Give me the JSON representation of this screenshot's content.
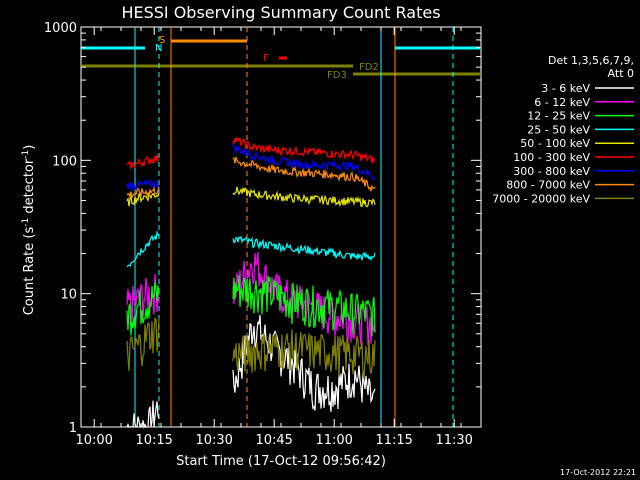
{
  "chart_data": {
    "type": "line",
    "title": "HESSI Observing Summary Count Rates",
    "xlabel": "Start Time (17-Oct-12 09:56:42)",
    "ylabel_main": "Count Rate (s",
    "ylabel_sup1": "-1",
    "ylabel_mid": " detector",
    "ylabel_sup2": "-1",
    "ylabel_end": ")",
    "timestamp": "17-Oct-2012 22:21",
    "y_scale": "log",
    "ylim": [
      1,
      1000
    ],
    "x_tick_labels": [
      "10:00",
      "10:15",
      "10:30",
      "10:45",
      "11:00",
      "11:15",
      "11:30"
    ],
    "x_tick_minutes": [
      3.3,
      18.3,
      33.3,
      48.3,
      63.3,
      78.3,
      93.3
    ],
    "xlim_minutes": [
      0,
      100
    ],
    "y_tick_labels": [
      "1",
      "10",
      "100",
      "1000"
    ],
    "y_tick_values": [
      1,
      10,
      100,
      1000
    ],
    "legend": {
      "header1": "Det 1,3,5,6,7,9,",
      "header2": "Att 0",
      "position": "right"
    },
    "series": [
      {
        "name": "3 - 6 keV",
        "color": "#ffffff",
        "seg1": [
          1,
          1,
          1,
          1.5
        ],
        "seg2": [
          2,
          6,
          4,
          3,
          2,
          2,
          2.5,
          1.5
        ]
      },
      {
        "name": "6 - 12 keV",
        "color": "#ff00ff",
        "seg1": [
          8,
          9,
          10,
          11
        ],
        "seg2": [
          10,
          18,
          11,
          9,
          8,
          7,
          6.5,
          6
        ]
      },
      {
        "name": "12 - 25 keV",
        "color": "#00ff00",
        "seg1": [
          7,
          8,
          9,
          10
        ],
        "seg2": [
          11,
          11,
          10,
          9,
          8.5,
          8,
          7.5,
          7
        ]
      },
      {
        "name": "25 - 50 keV",
        "color": "#00ffff",
        "seg1": [
          16,
          20,
          24,
          28
        ],
        "seg2": [
          26,
          24,
          23,
          22,
          21,
          20,
          19,
          19
        ]
      },
      {
        "name": "50 - 100 keV",
        "color": "#e6e600",
        "seg1": [
          48,
          52,
          54,
          56
        ],
        "seg2": [
          60,
          56,
          54,
          52,
          51,
          50,
          49,
          48
        ]
      },
      {
        "name": "100 - 300 keV",
        "color": "#ff0000",
        "seg1": [
          90,
          95,
          100,
          105
        ],
        "seg2": [
          145,
          125,
          120,
          118,
          115,
          112,
          110,
          100
        ]
      },
      {
        "name": "300 - 800 keV",
        "color": "#0000ff",
        "seg1": [
          65,
          65,
          66,
          67
        ],
        "seg2": [
          125,
          110,
          100,
          95,
          92,
          93,
          90,
          75
        ]
      },
      {
        "name": "800 - 7000 keV",
        "color": "#ff8c00",
        "seg1": [
          55,
          57,
          58,
          60
        ],
        "seg2": [
          100,
          92,
          85,
          82,
          80,
          78,
          75,
          60
        ]
      },
      {
        "name": "7000 - 20000 keV",
        "color": "#808000",
        "seg1": [
          3.5,
          4,
          5,
          5.5
        ],
        "seg2": [
          3.5,
          3.8,
          4,
          4,
          3.8,
          3.7,
          3.6,
          3.5
        ]
      }
    ],
    "seg1_range_minutes": [
      11.5,
      19.5
    ],
    "seg2_range_minutes": [
      38,
      73.5
    ],
    "annotations": {
      "S": "S",
      "N": "N",
      "F": "F",
      "FD2": "FD2",
      "FD3": "FD3"
    }
  }
}
